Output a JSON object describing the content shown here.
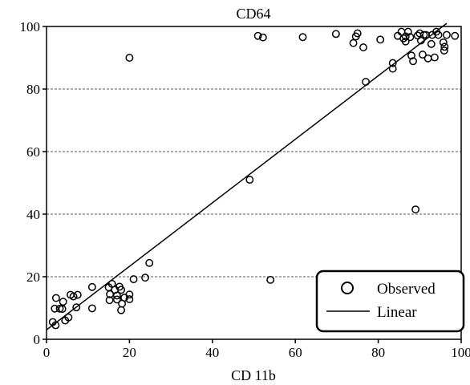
{
  "chart_data": {
    "type": "scatter",
    "title": "CD64",
    "xlabel": "CD 11b",
    "ylabel": "",
    "xlim": [
      0,
      100
    ],
    "ylim": [
      0,
      100
    ],
    "x_ticks": [
      0,
      20,
      40,
      60,
      80,
      100
    ],
    "y_ticks": [
      0,
      20,
      40,
      60,
      80,
      100
    ],
    "x_tick_labels": [
      "0",
      "20",
      "40",
      "60",
      "80",
      "100"
    ],
    "y_tick_labels": [
      "0",
      "20",
      "40",
      "60",
      "80",
      "100"
    ],
    "grid": "horizontal dashed",
    "legend": {
      "placement": "bottom-right",
      "entries": [
        "Observed",
        "Linear"
      ]
    },
    "colors": {
      "marker": "#000000",
      "line": "#000000",
      "grid": "#555555"
    },
    "series": [
      {
        "name": "Observed",
        "type": "scatter",
        "points": [
          [
            1.5,
            5.5
          ],
          [
            2.2,
            4.5
          ],
          [
            2.3,
            13.2
          ],
          [
            2.0,
            9.8
          ],
          [
            3.2,
            9.8
          ],
          [
            3.8,
            9.7
          ],
          [
            4.0,
            12.0
          ],
          [
            4.5,
            6.0
          ],
          [
            5.3,
            7.0
          ],
          [
            5.8,
            14.2
          ],
          [
            6.5,
            13.7
          ],
          [
            7.5,
            14.2
          ],
          [
            7.2,
            10.2
          ],
          [
            11.0,
            16.7
          ],
          [
            11.0,
            9.9
          ],
          [
            15.0,
            16.6
          ],
          [
            15.3,
            14.4
          ],
          [
            15.2,
            12.5
          ],
          [
            15.8,
            17.7
          ],
          [
            16.5,
            15.8
          ],
          [
            17.0,
            14.0
          ],
          [
            17.0,
            12.7
          ],
          [
            17.6,
            16.8
          ],
          [
            18.2,
            11.4
          ],
          [
            18.0,
            9.3
          ],
          [
            18.8,
            13.3
          ],
          [
            18.0,
            15.8
          ],
          [
            20.0,
            14.3
          ],
          [
            20.0,
            12.8
          ],
          [
            21.0,
            19.2
          ],
          [
            23.8,
            19.7
          ],
          [
            24.8,
            24.4
          ],
          [
            20.0,
            90.0
          ],
          [
            49.0,
            51.0
          ],
          [
            54.0,
            19.0
          ],
          [
            51.0,
            97.0
          ],
          [
            52.2,
            96.5
          ],
          [
            61.8,
            96.6
          ],
          [
            69.8,
            97.6
          ],
          [
            74.0,
            94.7
          ],
          [
            74.6,
            96.8
          ],
          [
            75.0,
            97.8
          ],
          [
            76.4,
            93.3
          ],
          [
            77.0,
            82.3
          ],
          [
            80.5,
            95.8
          ],
          [
            83.5,
            88.3
          ],
          [
            83.5,
            86.5
          ],
          [
            84.7,
            97.0
          ],
          [
            85.6,
            98.3
          ],
          [
            86.1,
            96.2
          ],
          [
            86.6,
            96.8
          ],
          [
            86.6,
            95.2
          ],
          [
            87.2,
            98.3
          ],
          [
            87.7,
            96.6
          ],
          [
            88.0,
            90.7
          ],
          [
            88.4,
            88.9
          ],
          [
            89.0,
            41.5
          ],
          [
            89.5,
            97.1
          ],
          [
            90.0,
            97.8
          ],
          [
            90.3,
            95.5
          ],
          [
            90.7,
            91.0
          ],
          [
            91.0,
            97.3
          ],
          [
            91.5,
            97.3
          ],
          [
            92.0,
            89.8
          ],
          [
            92.8,
            94.4
          ],
          [
            93.0,
            97.3
          ],
          [
            93.6,
            90.1
          ],
          [
            94.0,
            98.3
          ],
          [
            94.5,
            97.3
          ],
          [
            95.7,
            94.9
          ],
          [
            95.9,
            92.3
          ],
          [
            96.0,
            93.5
          ],
          [
            96.5,
            97.3
          ],
          [
            98.5,
            97.0
          ]
        ]
      },
      {
        "name": "Linear",
        "type": "line",
        "points": [
          [
            0,
            3.0
          ],
          [
            96.5,
            101.0
          ]
        ]
      }
    ]
  }
}
